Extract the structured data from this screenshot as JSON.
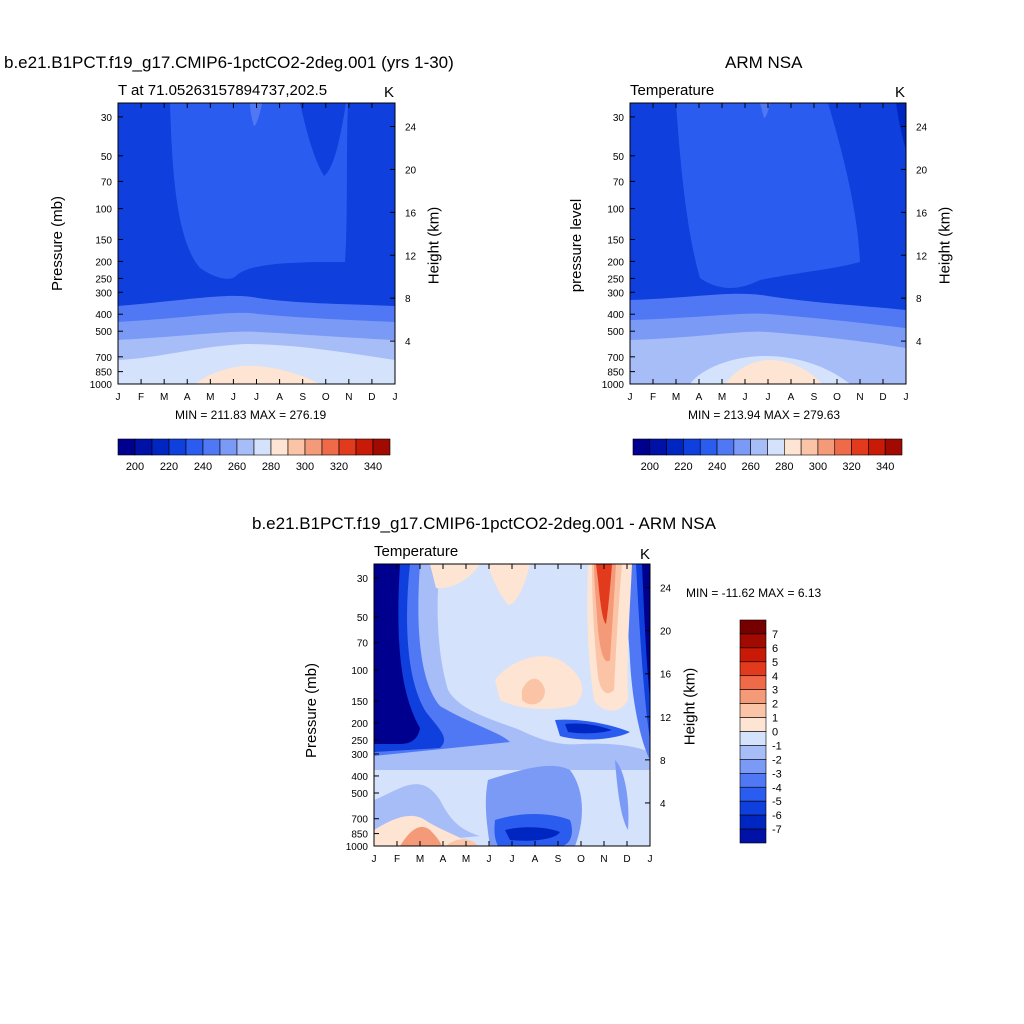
{
  "palette": [
    "#00008f",
    "#0011a8",
    "#0026c2",
    "#0f3fdc",
    "#2b5cf0",
    "#5078f4",
    "#7b9af6",
    "#a7bdf8",
    "#d4e2fc",
    "#fde4d3",
    "#fbc4a7",
    "#f59a78",
    "#ee6a48",
    "#e23a1c",
    "#c81a06",
    "#a00a00",
    "#760000"
  ],
  "panels": [
    {
      "title": "b.e21.B1PCT.f19_g17.CMIP6-1pctCO2-2deg.001 (yrs 1-30)",
      "left_label": "T at 71.05263157894737,202.5",
      "right_label": "K",
      "ylabel": "Pressure (mb)",
      "y2label": "Height (km)",
      "stats": "MIN = 211.83 MAX = 276.19",
      "levels": [
        200,
        210,
        220,
        230,
        240,
        250,
        260,
        270,
        280,
        290,
        300,
        310,
        320,
        330,
        340
      ],
      "colorbar_labels": [
        "200",
        "220",
        "240",
        "260",
        "280",
        "300",
        "320",
        "340"
      ]
    },
    {
      "title": "ARM NSA",
      "left_label": "Temperature",
      "right_label": "K",
      "ylabel": "pressure level",
      "y2label": "Height (km)",
      "stats": "MIN = 213.94 MAX = 279.63",
      "levels": [
        200,
        210,
        220,
        230,
        240,
        250,
        260,
        270,
        280,
        290,
        300,
        310,
        320,
        330,
        340
      ],
      "colorbar_labels": [
        "200",
        "220",
        "240",
        "260",
        "280",
        "300",
        "320",
        "340"
      ]
    },
    {
      "title": "b.e21.B1PCT.f19_g17.CMIP6-1pctCO2-2deg.001 - ARM NSA",
      "left_label": "Temperature",
      "right_label": "K",
      "ylabel": "Pressure (mb)",
      "y2label": "Height (km)",
      "stats": "MIN = -11.62 MAX =   6.13",
      "levels": [
        -7,
        -6,
        -5,
        -4,
        -3,
        -2,
        -1,
        0,
        1,
        2,
        3,
        4,
        5,
        6,
        7
      ],
      "colorbar_labels": [
        "7",
        "6",
        "5",
        "4",
        "3",
        "2",
        "1",
        "0",
        "-1",
        "-2",
        "-3",
        "-4",
        "-5",
        "-6",
        "-7"
      ]
    }
  ],
  "chart_data": [
    {
      "type": "heatmap",
      "title": "b.e21.B1PCT.f19_g17.CMIP6-1pctCO2-2deg.001 (yrs 1-30)",
      "x_categories": [
        "J",
        "F",
        "M",
        "A",
        "M",
        "J",
        "J",
        "A",
        "S",
        "O",
        "N",
        "D",
        "J"
      ],
      "y_pressure_ticks": [
        30,
        50,
        70,
        100,
        150,
        200,
        250,
        300,
        400,
        500,
        700,
        850,
        1000
      ],
      "y_height_ticks": [
        4,
        8,
        12,
        16,
        20,
        24
      ],
      "ylim": [
        1000,
        25
      ],
      "min": 211.83,
      "max": 276.19
    },
    {
      "type": "heatmap",
      "title": "ARM NSA",
      "x_categories": [
        "J",
        "F",
        "M",
        "A",
        "M",
        "J",
        "J",
        "A",
        "S",
        "O",
        "N",
        "D",
        "J"
      ],
      "y_pressure_ticks": [
        30,
        50,
        70,
        100,
        150,
        200,
        250,
        300,
        400,
        500,
        700,
        850,
        1000
      ],
      "y_height_ticks": [
        4,
        8,
        12,
        16,
        20,
        24
      ],
      "ylim": [
        1000,
        25
      ],
      "min": 213.94,
      "max": 279.63
    },
    {
      "type": "heatmap",
      "title": "b.e21.B1PCT.f19_g17.CMIP6-1pctCO2-2deg.001 - ARM NSA",
      "x_categories": [
        "J",
        "F",
        "M",
        "A",
        "M",
        "J",
        "J",
        "A",
        "S",
        "O",
        "N",
        "D",
        "J"
      ],
      "y_pressure_ticks": [
        30,
        50,
        70,
        100,
        150,
        200,
        250,
        300,
        400,
        500,
        700,
        850,
        1000
      ],
      "y_height_ticks": [
        4,
        8,
        12,
        16,
        20,
        24
      ],
      "ylim": [
        1000,
        25
      ],
      "min": -11.62,
      "max": 6.13
    }
  ]
}
